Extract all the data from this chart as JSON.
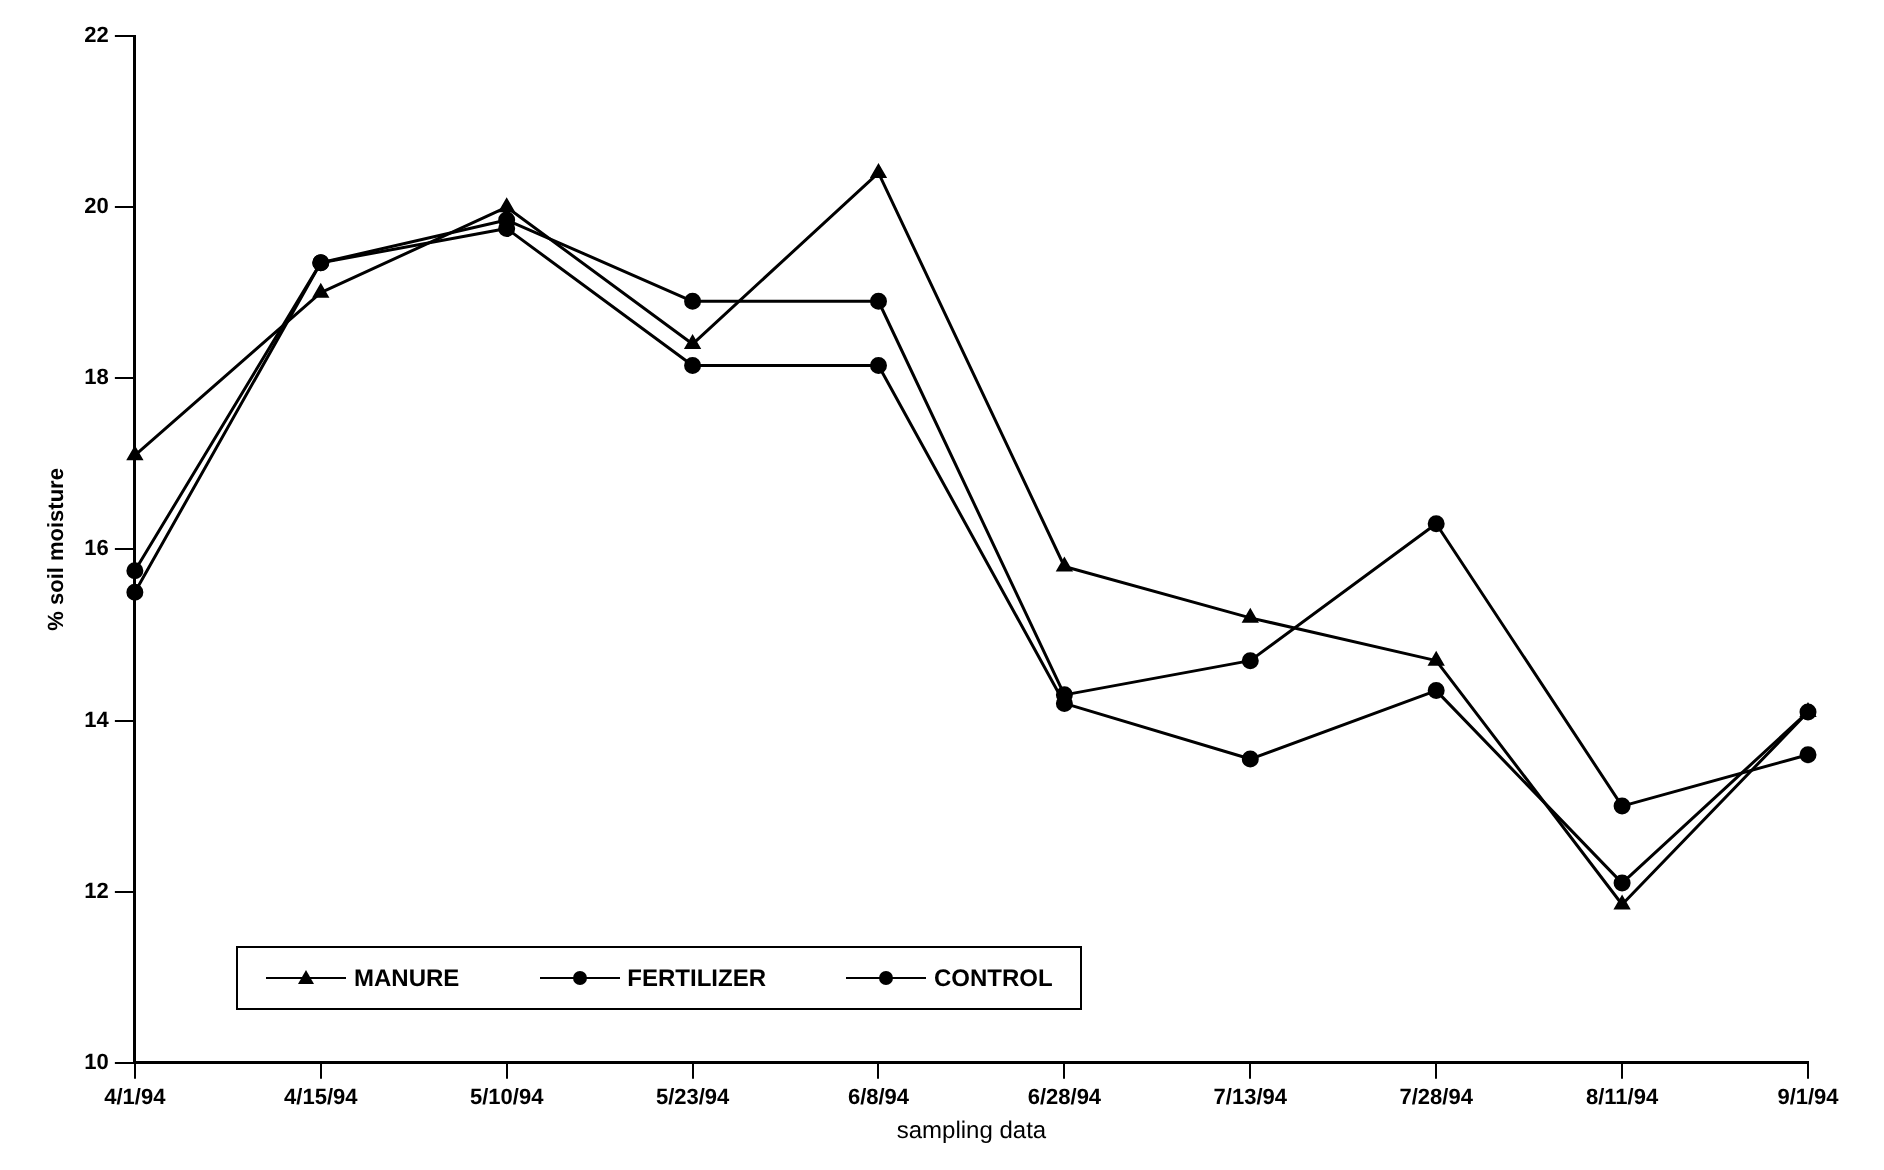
{
  "chart_data": {
    "type": "line",
    "xlabel": "sampling data",
    "ylabel": "% soil moisture",
    "categories": [
      "4/1/94",
      "4/15/94",
      "5/10/94",
      "5/23/94",
      "6/8/94",
      "6/28/94",
      "7/13/94",
      "7/28/94",
      "8/11/94",
      "9/1/94"
    ],
    "series": [
      {
        "name": "MANURE",
        "color": "#000000",
        "marker": "triangle",
        "values": [
          17.1,
          19.0,
          20.0,
          18.4,
          20.4,
          15.8,
          15.2,
          14.7,
          11.85,
          14.1
        ]
      },
      {
        "name": "FERTILIZER",
        "color": "#000000",
        "marker": "circle",
        "values": [
          15.75,
          19.35,
          19.85,
          18.9,
          18.9,
          14.3,
          14.7,
          16.3,
          13.0,
          13.6
        ]
      },
      {
        "name": "CONTROL",
        "color": "#000000",
        "marker": "circle",
        "values": [
          15.5,
          19.35,
          19.75,
          18.15,
          18.15,
          14.2,
          13.55,
          14.35,
          12.1,
          14.1
        ]
      }
    ],
    "ylim": [
      10,
      22
    ],
    "yticks": [
      10,
      12,
      14,
      16,
      18,
      20,
      22
    ],
    "grid": false,
    "legend": "bottom left"
  }
}
